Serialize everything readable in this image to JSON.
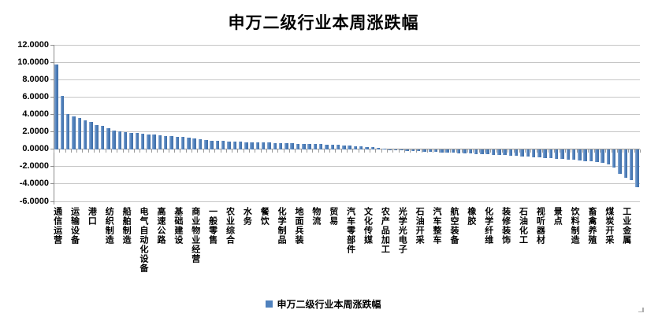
{
  "title": "申万二级行业本周涨跌幅",
  "legend": {
    "label": "申万二级行业本周涨跌幅",
    "swatch_color": "#4f81bd"
  },
  "colors": {
    "bar": "#4f81bd",
    "gridline": "#c6c6c6",
    "axis": "#8c8c8c",
    "text": "#000000",
    "background": "#ffffff"
  },
  "chart_data": {
    "type": "bar",
    "title": "申万二级行业本周涨跌幅",
    "xlabel": "",
    "ylabel": "",
    "ylim": [
      -6,
      12
    ],
    "ytick_interval": 2,
    "yticks": [
      "12.0000",
      "10.0000",
      "8.0000",
      "6.0000",
      "4.0000",
      "2.0000",
      "0.0000",
      "-2.0000",
      "-4.0000",
      "-6.0000"
    ],
    "grid": true,
    "legend_position": "bottom",
    "legend_entries": [
      "申万二级行业本周涨跌幅"
    ],
    "bar_color": "#4f81bd",
    "x_label_interval": 3,
    "categories_note": "category labels are shown for every 3rd bar only",
    "labeled_categories": [
      "通信运营",
      "运输设备",
      "港口",
      "纺织制造",
      "船舶制造",
      "电气自动化设备",
      "高速公路",
      "基础建设",
      "商业物业经营",
      "一般零售",
      "农业综合",
      "水务",
      "餐饮",
      "化学制品",
      "地面兵装",
      "物流",
      "贸易",
      "汽车零部件",
      "文化传媒",
      "农产品加工",
      "光学光电子",
      "石油开采",
      "汽车整车",
      "航空装备",
      "橡胶",
      "化学纤维",
      "装修装饰",
      "石油化工",
      "视听器材",
      "景点",
      "饮料制造",
      "畜禽养殖",
      "煤炭开采",
      "工业金属"
    ],
    "values": [
      9.72,
      6.16,
      4.05,
      3.8,
      3.6,
      3.28,
      3.1,
      2.75,
      2.65,
      2.38,
      2.1,
      2.02,
      1.96,
      1.9,
      1.84,
      1.78,
      1.72,
      1.66,
      1.6,
      1.55,
      1.5,
      1.46,
      1.4,
      1.32,
      1.22,
      1.12,
      1.05,
      1.0,
      0.97,
      0.94,
      0.91,
      0.88,
      0.85,
      0.82,
      0.8,
      0.78,
      0.76,
      0.74,
      0.72,
      0.7,
      0.68,
      0.66,
      0.64,
      0.62,
      0.6,
      0.58,
      0.56,
      0.54,
      0.52,
      0.48,
      0.44,
      0.4,
      0.35,
      0.3,
      0.26,
      0.22,
      0.16,
      0.1,
      -0.05,
      -0.1,
      -0.14,
      -0.18,
      -0.21,
      -0.24,
      -0.27,
      -0.3,
      -0.33,
      -0.36,
      -0.39,
      -0.42,
      -0.45,
      -0.48,
      -0.51,
      -0.54,
      -0.57,
      -0.6,
      -0.63,
      -0.66,
      -0.7,
      -0.74,
      -0.78,
      -0.82,
      -0.86,
      -0.9,
      -0.95,
      -1.0,
      -1.05,
      -1.1,
      -1.15,
      -1.2,
      -1.25,
      -1.3,
      -1.35,
      -1.4,
      -1.5,
      -1.6,
      -1.75,
      -2.1,
      -2.8,
      -3.3,
      -3.6,
      -4.35
    ]
  }
}
